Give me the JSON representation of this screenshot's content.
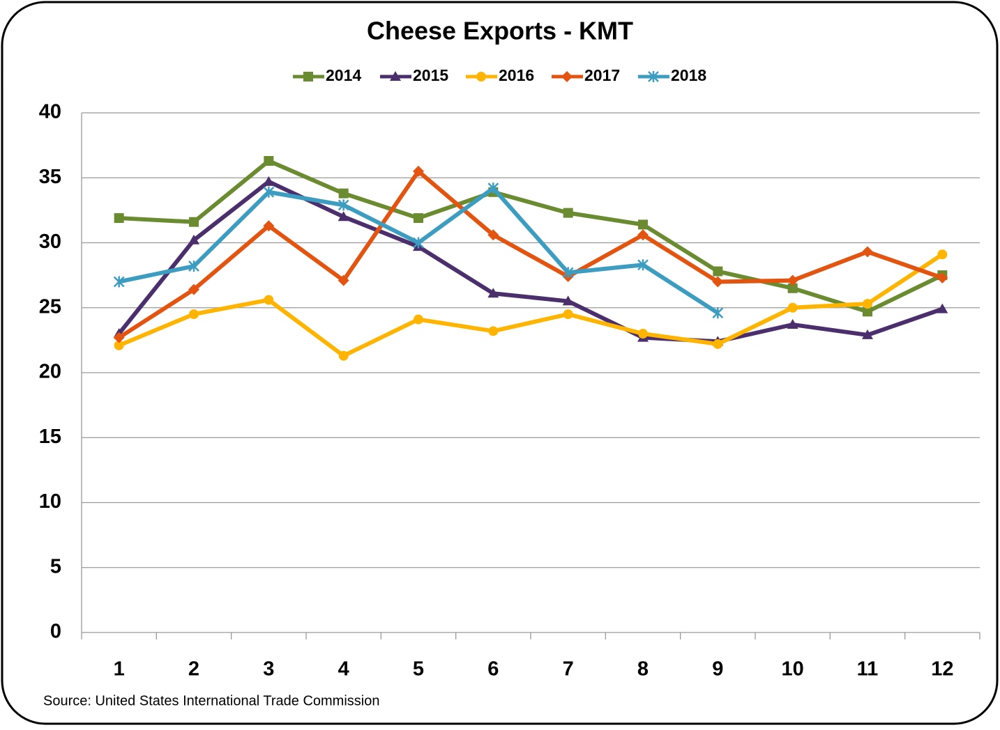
{
  "chart_data": {
    "type": "line",
    "title": "Cheese Exports - KMT",
    "categories": [
      "1",
      "2",
      "3",
      "4",
      "5",
      "6",
      "7",
      "8",
      "9",
      "10",
      "11",
      "12"
    ],
    "series": [
      {
        "name": "2014",
        "color": "#6a8b2f",
        "marker": "square",
        "values": [
          31.9,
          31.6,
          36.3,
          33.8,
          31.9,
          33.9,
          32.3,
          31.4,
          27.8,
          26.5,
          24.7,
          27.5
        ]
      },
      {
        "name": "2015",
        "color": "#4b2f6d",
        "marker": "triangle",
        "values": [
          23.0,
          30.2,
          34.7,
          32.0,
          29.7,
          26.1,
          25.5,
          22.7,
          22.4,
          23.7,
          22.9,
          24.9
        ]
      },
      {
        "name": "2016",
        "color": "#ffb400",
        "marker": "circle",
        "values": [
          22.1,
          24.5,
          25.6,
          21.3,
          24.1,
          23.2,
          24.5,
          23.0,
          22.2,
          25.0,
          25.3,
          29.1
        ]
      },
      {
        "name": "2017",
        "color": "#e2540f",
        "marker": "diamond",
        "values": [
          22.7,
          26.4,
          31.3,
          27.1,
          35.5,
          30.6,
          27.4,
          30.6,
          27.0,
          27.1,
          29.3,
          27.3
        ]
      },
      {
        "name": "2018",
        "color": "#3c9dc1",
        "marker": "star",
        "values": [
          27.0,
          28.2,
          33.9,
          32.9,
          30.0,
          34.2,
          27.7,
          28.3,
          24.6,
          null,
          null,
          null
        ]
      }
    ],
    "ylim": [
      0,
      40
    ],
    "yticks": [
      0,
      5,
      10,
      15,
      20,
      25,
      30,
      35,
      40
    ],
    "grid": true,
    "legend": "top",
    "source": "Source: United States International Trade Commission"
  }
}
